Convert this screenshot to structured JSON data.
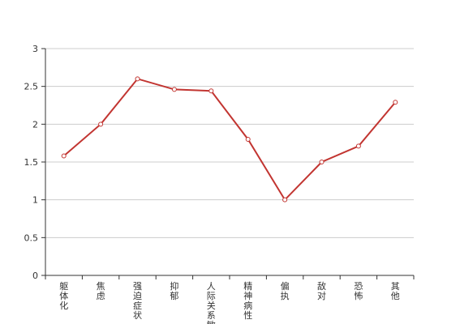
{
  "chart_data": {
    "type": "line",
    "categories": [
      "躯体化",
      "焦虑",
      "强迫症状",
      "抑郁",
      "人际关系敏感",
      "精神病性",
      "偏执",
      "敌对",
      "恐怖",
      "其他"
    ],
    "series": [
      {
        "values": [
          1.58,
          2.0,
          2.6,
          2.46,
          2.44,
          1.8,
          1.0,
          1.5,
          1.71,
          2.29
        ]
      }
    ],
    "ylim": [
      0,
      3
    ],
    "yticks": [
      "0",
      "0.5",
      "1",
      "1.5",
      "2",
      "2.5",
      "3"
    ],
    "grid": true,
    "colors": {
      "series": "#c23531",
      "grid": "#cccccc",
      "axis": "#333333"
    }
  }
}
